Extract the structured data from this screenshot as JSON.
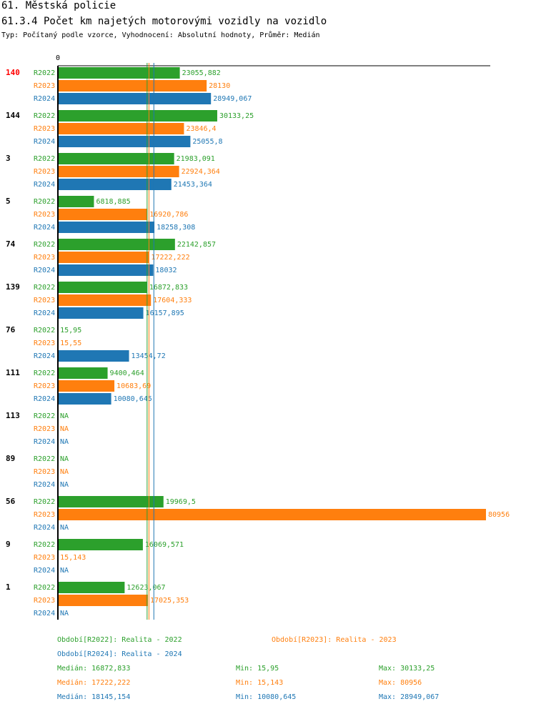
{
  "header": {
    "title": "61. Městská policie",
    "subtitle": "61.3.4 Počet km najetých motorovými vozidly na vozidlo",
    "type_line": "Typ: Počítaný podle vzorce, Vyhodnocení: Absolutní hodnoty, Průměr: Medián"
  },
  "colors": {
    "R2022": "#2ca02c",
    "R2023": "#ff7f0e",
    "R2024": "#1f77b4",
    "highlight": "#ff0000",
    "axis": "#000000"
  },
  "chart_data": {
    "type": "bar",
    "orientation": "horizontal",
    "title": "61.3.4 Počet km najetých motorovými vozidly na vozidlo",
    "axis_zero_label": "0",
    "xlim": [
      0,
      80956
    ],
    "series_names": [
      "R2022",
      "R2023",
      "R2024"
    ],
    "groups": [
      {
        "label": "140",
        "highlight": true,
        "values": [
          23055.882,
          28130,
          28949.067
        ],
        "labels": [
          "23055,882",
          "28130",
          "28949,067"
        ]
      },
      {
        "label": "144",
        "highlight": false,
        "values": [
          30133.25,
          23846.4,
          25055.8
        ],
        "labels": [
          "30133,25",
          "23846,4",
          "25055,8"
        ]
      },
      {
        "label": "3",
        "highlight": false,
        "values": [
          21983.091,
          22924.364,
          21453.364
        ],
        "labels": [
          "21983,091",
          "22924,364",
          "21453,364"
        ]
      },
      {
        "label": "5",
        "highlight": false,
        "values": [
          6818.885,
          16920.786,
          18258.308
        ],
        "labels": [
          "6818,885",
          "16920,786",
          "18258,308"
        ]
      },
      {
        "label": "74",
        "highlight": false,
        "values": [
          22142.857,
          17222.222,
          18032
        ],
        "labels": [
          "22142,857",
          "17222,222",
          "18032"
        ]
      },
      {
        "label": "139",
        "highlight": false,
        "values": [
          16872.833,
          17604.333,
          16157.895
        ],
        "labels": [
          "16872,833",
          "17604,333",
          "16157,895"
        ]
      },
      {
        "label": "76",
        "highlight": false,
        "values": [
          15.95,
          15.55,
          13454.72
        ],
        "labels": [
          "15,95",
          "15,55",
          "13454,72"
        ]
      },
      {
        "label": "111",
        "highlight": false,
        "values": [
          9400.464,
          10683.69,
          10080.645
        ],
        "labels": [
          "9400,464",
          "10683,69",
          "10080,645"
        ]
      },
      {
        "label": "113",
        "highlight": false,
        "values": [
          null,
          null,
          null
        ],
        "labels": [
          "NA",
          "NA",
          "NA"
        ]
      },
      {
        "label": "89",
        "highlight": false,
        "values": [
          null,
          null,
          null
        ],
        "labels": [
          "NA",
          "NA",
          "NA"
        ]
      },
      {
        "label": "56",
        "highlight": false,
        "values": [
          19969.5,
          80956,
          null
        ],
        "labels": [
          "19969,5",
          "80956",
          "NA"
        ]
      },
      {
        "label": "9",
        "highlight": false,
        "values": [
          16069.571,
          15.143,
          null
        ],
        "labels": [
          "16069,571",
          "15,143",
          "NA"
        ]
      },
      {
        "label": "1",
        "highlight": false,
        "values": [
          12623.067,
          17025.353,
          null
        ],
        "labels": [
          "12623,067",
          "17025,353",
          "NA"
        ]
      }
    ],
    "medians": [
      16872.833,
      17222.222,
      18145.154
    ],
    "legend": [
      {
        "series": "R2022",
        "text": "Období[R2022]: Realita - 2022"
      },
      {
        "series": "R2023",
        "text": "Období[R2023]: Realita - 2023"
      },
      {
        "series": "R2024",
        "text": "Období[R2024]: Realita - 2024"
      }
    ],
    "stats": [
      {
        "series": "R2022",
        "median": "Medián: 16872,833",
        "min": "Min: 15,95",
        "max": "Max: 30133,25"
      },
      {
        "series": "R2023",
        "median": "Medián: 17222,222",
        "min": "Min: 15,143",
        "max": "Max: 80956"
      },
      {
        "series": "R2024",
        "median": "Medián: 18145,154",
        "min": "Min: 10080,645",
        "max": "Max: 28949,067"
      }
    ]
  }
}
